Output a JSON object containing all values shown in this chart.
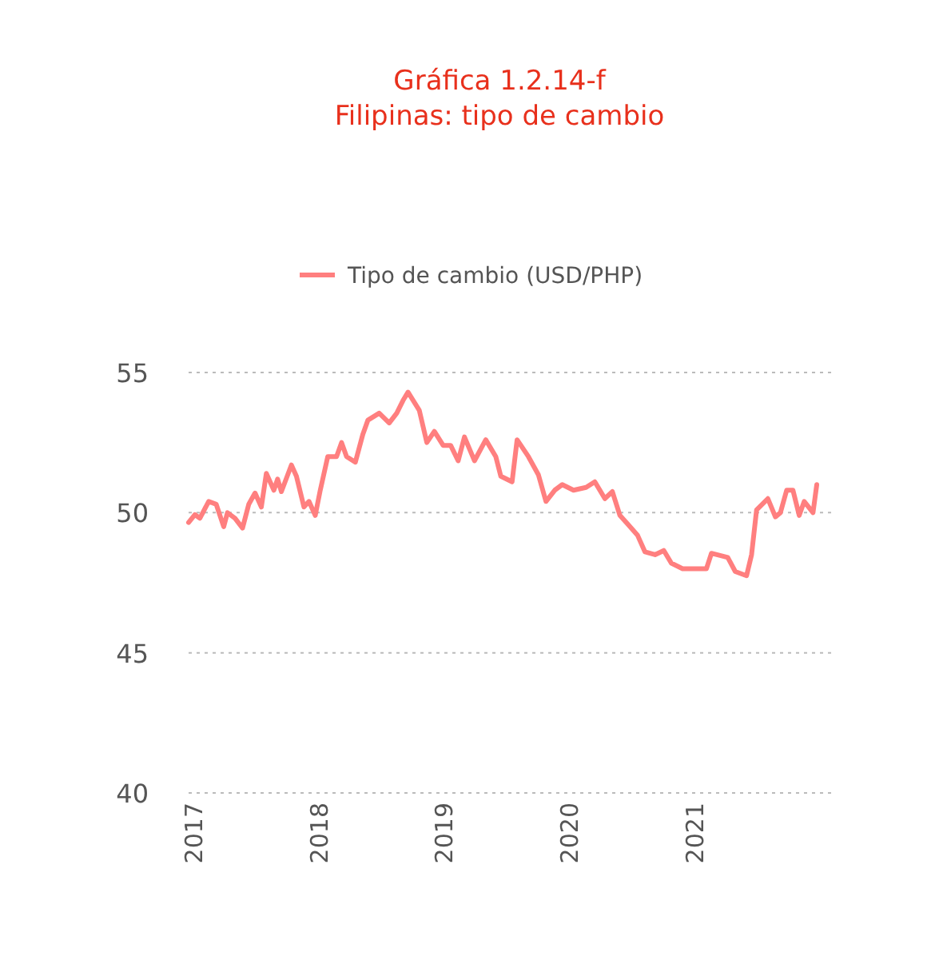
{
  "chart_data": {
    "type": "line",
    "title": "Gráfica 1.2.14-f\nFilipinas: tipo de cambio",
    "xlim": [
      2016.97,
      2022.12
    ],
    "xticks": [
      2017,
      2018,
      2019,
      2020,
      2021
    ],
    "ylim": [
      40,
      55
    ],
    "yticks": [
      40,
      45,
      50,
      55
    ],
    "grid": "y",
    "legend": "top",
    "series": [
      {
        "name": "Tipo de cambio (USD/PHP)",
        "color": "#ff7f7f",
        "x": [
          2016.97,
          2017.02,
          2017.06,
          2017.13,
          2017.19,
          2017.25,
          2017.28,
          2017.34,
          2017.4,
          2017.45,
          2017.5,
          2017.55,
          2017.59,
          2017.65,
          2017.68,
          2017.71,
          2017.79,
          2017.83,
          2017.89,
          2017.93,
          2017.98,
          2018.02,
          2018.08,
          2018.15,
          2018.19,
          2018.23,
          2018.3,
          2018.36,
          2018.4,
          2018.49,
          2018.57,
          2018.63,
          2018.68,
          2018.72,
          2018.81,
          2018.87,
          2018.93,
          2019.0,
          2019.06,
          2019.12,
          2019.17,
          2019.25,
          2019.34,
          2019.42,
          2019.46,
          2019.55,
          2019.59,
          2019.68,
          2019.76,
          2019.82,
          2019.89,
          2019.95,
          2020.04,
          2020.14,
          2020.21,
          2020.29,
          2020.35,
          2020.41,
          2020.48,
          2020.55,
          2020.61,
          2020.69,
          2020.76,
          2020.82,
          2020.91,
          2021.1,
          2021.14,
          2021.27,
          2021.33,
          2021.42,
          2021.46,
          2021.5,
          2021.59,
          2021.65,
          2021.69,
          2021.74,
          2021.79,
          2021.84,
          2021.88,
          2021.95,
          2021.98
        ],
        "values": [
          49.65,
          49.93,
          49.8,
          50.4,
          50.3,
          49.5,
          50.0,
          49.8,
          49.45,
          50.3,
          50.7,
          50.2,
          51.4,
          50.8,
          51.2,
          50.75,
          51.7,
          51.3,
          50.2,
          50.4,
          49.9,
          50.8,
          52.0,
          52.0,
          52.5,
          52.0,
          51.8,
          52.8,
          53.3,
          53.55,
          53.2,
          53.55,
          54.0,
          54.3,
          53.65,
          52.5,
          52.9,
          52.4,
          52.4,
          51.85,
          52.7,
          51.85,
          52.6,
          52.0,
          51.3,
          51.1,
          52.6,
          52.0,
          51.35,
          50.4,
          50.8,
          51.0,
          50.8,
          50.9,
          51.1,
          50.5,
          50.75,
          49.9,
          49.55,
          49.2,
          48.6,
          48.5,
          48.65,
          48.2,
          48.0,
          48.0,
          48.55,
          48.4,
          47.9,
          47.75,
          48.5,
          50.1,
          50.5,
          49.85,
          50.0,
          50.8,
          50.8,
          49.9,
          50.4,
          50.0,
          51.0
        ]
      }
    ]
  }
}
